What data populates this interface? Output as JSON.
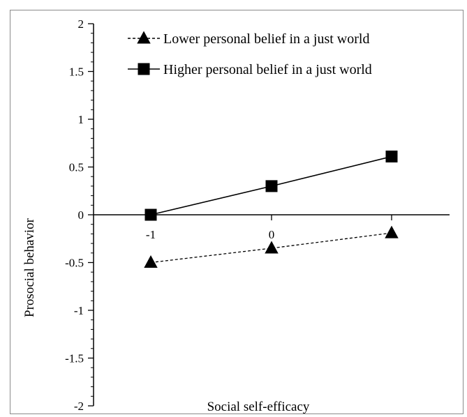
{
  "chart_data": {
    "type": "line",
    "xlabel": "Social self-efficacy",
    "ylabel": "Prosocial behavior",
    "categories": [
      "-1",
      "0",
      ""
    ],
    "x": [
      -1,
      0,
      1
    ],
    "ylim": [
      -2,
      2
    ],
    "yticks": [
      -2,
      -1.5,
      -1,
      -0.5,
      0,
      0.5,
      1,
      1.5,
      2
    ],
    "ytick_labels": [
      "-2",
      "-1.5",
      "-1",
      "-0.5",
      "0",
      "0.5",
      "1",
      "1.5",
      "2"
    ],
    "grid": false,
    "legend_position": "top-left",
    "series": [
      {
        "name": "Lower personal belief in a just world",
        "values": [
          -0.5,
          -0.35,
          -0.19
        ],
        "marker": "triangle",
        "line_style": "dashed",
        "color": "#000000"
      },
      {
        "name": "Higher personal belief in a just world",
        "values": [
          0.0,
          0.3,
          0.61
        ],
        "marker": "square",
        "line_style": "solid",
        "color": "#000000"
      }
    ]
  }
}
